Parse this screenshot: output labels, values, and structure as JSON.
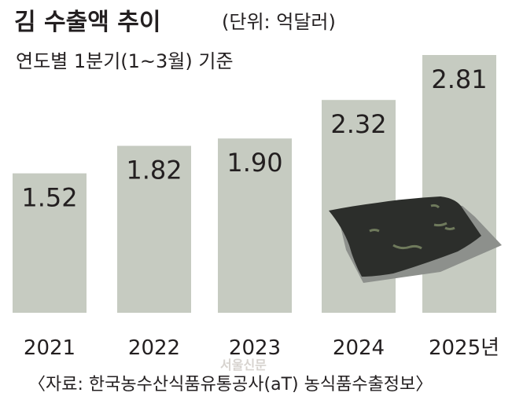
{
  "chart_data": {
    "type": "bar",
    "title": "김 수출액 추이",
    "unit_note": "(단위: 억달러)",
    "subtitle": "연도별 1분기(1~3월) 기준",
    "categories": [
      "2021",
      "2022",
      "2023",
      "2024",
      "2025년"
    ],
    "values": [
      1.52,
      1.82,
      1.9,
      2.32,
      2.81
    ],
    "value_labels": [
      "1.52",
      "1.82",
      "1.90",
      "2.32",
      "2.81"
    ],
    "ylim": [
      0,
      2.81
    ],
    "grid": false,
    "legend": "none",
    "source": "〈자료: 한국농수산식품유통공사(aT) 농식품수출정보〉",
    "watermark": "서울신문"
  },
  "colors": {
    "bar": "#c6cbc1",
    "text": "#231f20",
    "laver": "#2c2e2b",
    "laver_shadow": "#8d908c"
  },
  "icons": [
    "laver-sheet-icon"
  ]
}
